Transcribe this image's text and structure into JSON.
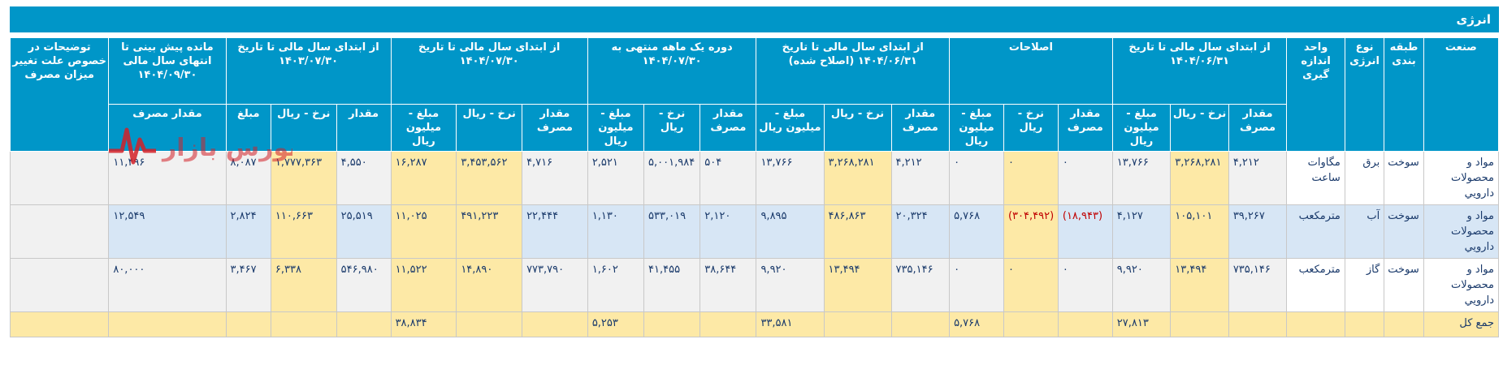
{
  "title": "انرژی",
  "headers": {
    "industry": "صنعت",
    "classification": "طبقه بندی",
    "energy_type": "نوع انرژی",
    "unit": "واحد اندازه گیری",
    "groups": [
      "از ابتدای سال مالی تا تاریخ ۱۴۰۴/۰۶/۳۱",
      "اصلاحات",
      "از ابتدای سال مالی تا تاریخ ۱۴۰۴/۰۶/۳۱ (اصلاح شده)",
      "دوره یک ماهه منتهی به ۱۴۰۴/۰۷/۳۰",
      "از ابتدای سال مالی تا تاریخ ۱۴۰۴/۰۷/۳۰",
      "از ابتدای سال مالی تا تاریخ ۱۴۰۳/۰۷/۳۰",
      "مانده پیش بینی تا انتهای سال مالی ۱۴۰۴/۰۹/۳۰",
      "توضیحات در خصوص علت تغییر میزان مصرف"
    ],
    "sub_qty": "مقدار مصرف",
    "sub_rate": "نرخ - ریال",
    "sub_amount": "مبلغ - میلیون ریال",
    "sub_qty_short": "مقدار",
    "sub_amount_short": "مبلغ"
  },
  "rows": [
    {
      "industry": "مواد و محصولات دارويي",
      "classification": "سوخت",
      "energy_type": "برق",
      "unit": "مگاوات ساعت",
      "cells": [
        "۴,۲۱۲",
        "۳,۲۶۸,۲۸۱",
        "۱۳,۷۶۶",
        "۰",
        "۰",
        "۰",
        "۴,۲۱۲",
        "۳,۲۶۸,۲۸۱",
        "۱۳,۷۶۶",
        "۵۰۴",
        "۵,۰۰۱,۹۸۴",
        "۲,۵۲۱",
        "۴,۷۱۶",
        "۳,۴۵۳,۵۶۲",
        "۱۶,۲۸۷",
        "۴,۵۵۰",
        "۱,۷۷۷,۳۶۳",
        "۸,۰۸۷",
        "۱۱,۴۹۶",
        ""
      ]
    },
    {
      "industry": "مواد و محصولات دارويي",
      "classification": "سوخت",
      "energy_type": "آب",
      "unit": "مترمکعب",
      "cells": [
        "۳۹,۲۶۷",
        "۱۰۵,۱۰۱",
        "۴,۱۲۷",
        "(۱۸,۹۴۳)",
        "(۳۰۴,۴۹۲)",
        "۵,۷۶۸",
        "۲۰,۳۲۴",
        "۴۸۶,۸۶۳",
        "۹,۸۹۵",
        "۲,۱۲۰",
        "۵۳۳,۰۱۹",
        "۱,۱۳۰",
        "۲۲,۴۴۴",
        "۴۹۱,۲۲۳",
        "۱۱,۰۲۵",
        "۲۵,۵۱۹",
        "۱۱۰,۶۶۳",
        "۲,۸۲۴",
        "۱۲,۵۴۹",
        ""
      ]
    },
    {
      "industry": "مواد و محصولات دارويي",
      "classification": "سوخت",
      "energy_type": "گاز",
      "unit": "مترمکعب",
      "cells": [
        "۷۳۵,۱۴۶",
        "۱۳,۴۹۴",
        "۹,۹۲۰",
        "۰",
        "۰",
        "۰",
        "۷۳۵,۱۴۶",
        "۱۳,۴۹۴",
        "۹,۹۲۰",
        "۳۸,۶۴۴",
        "۴۱,۴۵۵",
        "۱,۶۰۲",
        "۷۷۳,۷۹۰",
        "۱۴,۸۹۰",
        "۱۱,۵۲۲",
        "۵۴۶,۹۸۰",
        "۶,۳۳۸",
        "۳,۴۶۷",
        "۸۰,۰۰۰",
        ""
      ]
    }
  ],
  "total": {
    "label": "جمع کل",
    "amounts": [
      "۲۷,۸۱۳",
      "۵,۷۶۸",
      "۳۳,۵۸۱",
      "۵,۲۵۳",
      "۳۸,۸۳۴"
    ]
  },
  "logo_text": "بورس بازار",
  "colors": {
    "header": "#0096c8",
    "yellow": "#fde9a6",
    "blue": "#d7e6f5",
    "negative": "#c00000"
  }
}
